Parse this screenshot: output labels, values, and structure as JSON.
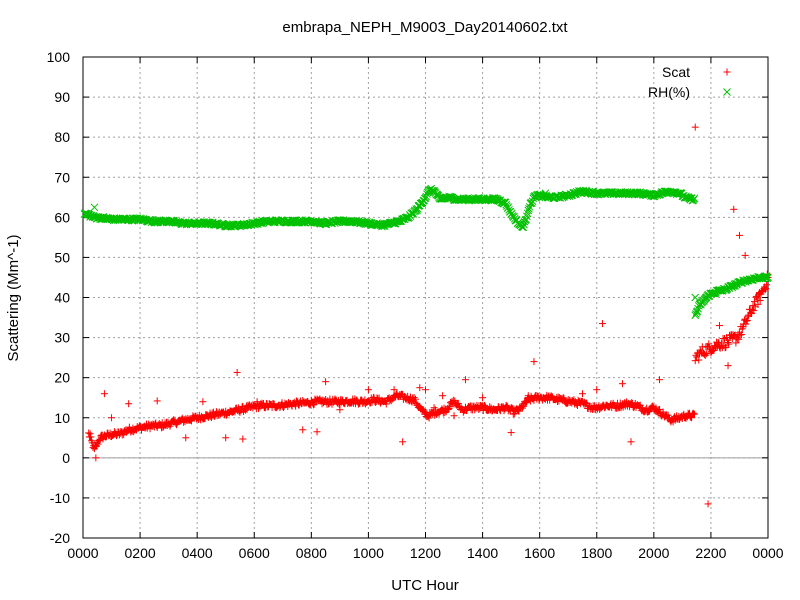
{
  "chart_data": {
    "type": "scatter",
    "title": "embrapa_NEPH_M9003_Day20140602.txt",
    "xlabel": "UTC Hour",
    "ylabel": "Scattering (Mm^-1)",
    "xlim": [
      0,
      24
    ],
    "ylim": [
      -20,
      100
    ],
    "x_ticks": [
      0,
      2,
      4,
      6,
      8,
      10,
      12,
      14,
      16,
      18,
      20,
      22,
      24
    ],
    "x_tick_labels": [
      "0000",
      "0200",
      "0400",
      "0600",
      "0800",
      "1000",
      "1200",
      "1400",
      "1600",
      "1800",
      "2000",
      "2200",
      "0000"
    ],
    "y_ticks": [
      -20,
      -10,
      0,
      10,
      20,
      30,
      40,
      50,
      60,
      70,
      80,
      90,
      100
    ],
    "y_tick_labels": [
      "-20",
      "-10",
      "0",
      "10",
      "20",
      "30",
      "40",
      "50",
      "60",
      "70",
      "80",
      "90",
      "100"
    ],
    "grid": true,
    "zero_line": true,
    "legend_position": "top-right",
    "series": [
      {
        "name": "Scat",
        "marker": "+",
        "color": "#ff0000",
        "x": [
          0.2,
          0.4,
          0.5,
          0.6,
          0.8,
          1.0,
          1.3,
          1.6,
          2.0,
          2.4,
          2.7,
          3.0,
          3.3,
          3.6,
          4.0,
          4.4,
          4.8,
          5.2,
          5.5,
          5.8,
          6.2,
          6.6,
          7.0,
          7.4,
          7.8,
          8.2,
          8.6,
          9.0,
          9.4,
          9.8,
          10.2,
          10.6,
          11.0,
          11.3,
          11.6,
          11.9,
          12.1,
          12.4,
          12.7,
          13.0,
          13.3,
          13.6,
          14.0,
          14.4,
          14.8,
          15.1,
          15.3,
          15.6,
          15.9,
          16.3,
          16.7,
          17.1,
          17.5,
          17.9,
          18.3,
          18.7,
          19.1,
          19.4,
          19.7,
          20.0,
          20.3,
          20.6,
          20.9,
          21.1,
          21.3,
          21.45,
          21.7,
          22.0,
          22.3,
          22.6,
          22.9,
          23.1,
          23.3,
          23.5,
          23.7,
          23.9,
          24.0
        ],
        "y": [
          6.0,
          2.0,
          3.5,
          5.0,
          5.5,
          5.8,
          6.0,
          7.0,
          7.5,
          8.0,
          8.0,
          8.5,
          9.0,
          9.5,
          10.0,
          10.5,
          11.0,
          11.5,
          12.0,
          12.5,
          13.0,
          13.0,
          13.2,
          13.5,
          13.7,
          14.0,
          14.0,
          14.0,
          14.2,
          14.0,
          14.5,
          14.0,
          15.5,
          15.0,
          14.5,
          11.5,
          10.5,
          11.5,
          12.0,
          14.0,
          12.0,
          12.5,
          12.5,
          12.0,
          12.5,
          11.5,
          12.0,
          14.5,
          15.0,
          15.0,
          14.5,
          14.0,
          13.5,
          12.5,
          13.0,
          13.0,
          13.5,
          13.0,
          12.0,
          12.5,
          11.0,
          9.5,
          10.0,
          10.5,
          10.5,
          25.0,
          26.5,
          27.5,
          28.5,
          29.0,
          30.0,
          32.0,
          35.0,
          38.0,
          40.0,
          43.0,
          45.0
        ],
        "outliers_x": [
          0.25,
          0.45,
          0.75,
          1.0,
          1.6,
          2.6,
          3.6,
          4.2,
          5.0,
          5.4,
          5.6,
          6.1,
          7.7,
          8.2,
          8.5,
          9.0,
          10.0,
          10.9,
          11.2,
          11.8,
          12.0,
          12.3,
          12.6,
          13.0,
          13.4,
          14.0,
          14.2,
          15.0,
          15.6,
          15.8,
          17.5,
          18.0,
          18.2,
          18.7,
          18.9,
          19.2,
          19.6,
          20.2,
          20.6,
          21.45,
          21.9,
          22.3,
          22.6,
          22.8,
          23.0,
          23.2,
          23.4,
          23.7
        ],
        "outliers_y": [
          6.0,
          0.0,
          16.0,
          10.0,
          13.5,
          14.2,
          5.0,
          14.0,
          5.0,
          21.3,
          4.7,
          14.0,
          7.0,
          6.5,
          19.0,
          12.0,
          17.0,
          17.0,
          4.0,
          17.5,
          17.0,
          12.5,
          15.5,
          10.5,
          19.5,
          15.0,
          12.0,
          6.3,
          15.5,
          24.0,
          16.0,
          17.0,
          33.5,
          12.5,
          18.5,
          4.0,
          12.0,
          19.5,
          9.0,
          82.5,
          -11.5,
          33.0,
          23.0,
          62.0,
          55.5,
          50.5,
          36.0,
          41.0
        ]
      },
      {
        "name": "RH(%)",
        "marker": "x",
        "color": "#00c000",
        "x": [
          0.05,
          0.4,
          0.7,
          1.0,
          1.5,
          2.0,
          2.5,
          3.0,
          3.5,
          4.0,
          4.5,
          5.0,
          5.5,
          6.0,
          6.5,
          7.0,
          7.5,
          8.0,
          8.5,
          9.0,
          9.5,
          10.0,
          10.5,
          10.8,
          11.1,
          11.4,
          11.7,
          12.0,
          12.15,
          12.3,
          12.5,
          12.8,
          13.1,
          13.5,
          14.0,
          14.5,
          14.8,
          15.0,
          15.2,
          15.4,
          15.5,
          15.6,
          15.8,
          16.0,
          16.3,
          16.6,
          17.0,
          17.5,
          18.0,
          18.5,
          19.0,
          19.5,
          20.0,
          20.5,
          20.9,
          21.1,
          21.3,
          21.45,
          21.6,
          21.9,
          22.2,
          22.5,
          22.8,
          23.1,
          23.4,
          23.7,
          24.0
        ],
        "y": [
          61.0,
          60.0,
          59.8,
          59.5,
          59.5,
          59.5,
          59.0,
          59.0,
          58.5,
          58.5,
          58.5,
          58.0,
          58.0,
          58.5,
          59.0,
          59.0,
          59.0,
          59.0,
          58.5,
          59.0,
          59.0,
          58.5,
          58.0,
          58.5,
          59.0,
          60.0,
          62.0,
          65.0,
          67.0,
          66.5,
          64.5,
          65.0,
          64.5,
          64.5,
          64.5,
          64.5,
          63.5,
          61.0,
          59.0,
          57.5,
          59.0,
          62.0,
          65.0,
          65.5,
          65.0,
          65.0,
          65.5,
          66.5,
          66.0,
          66.0,
          66.0,
          66.0,
          65.5,
          66.5,
          66.0,
          65.0,
          64.5,
          35.5,
          38.0,
          40.5,
          41.5,
          42.0,
          43.0,
          44.0,
          44.5,
          45.0,
          45.0
        ],
        "outliers_x": [
          0.4,
          16.2,
          21.45
        ],
        "outliers_y": [
          62.5,
          66.0,
          40.0
        ]
      }
    ]
  }
}
